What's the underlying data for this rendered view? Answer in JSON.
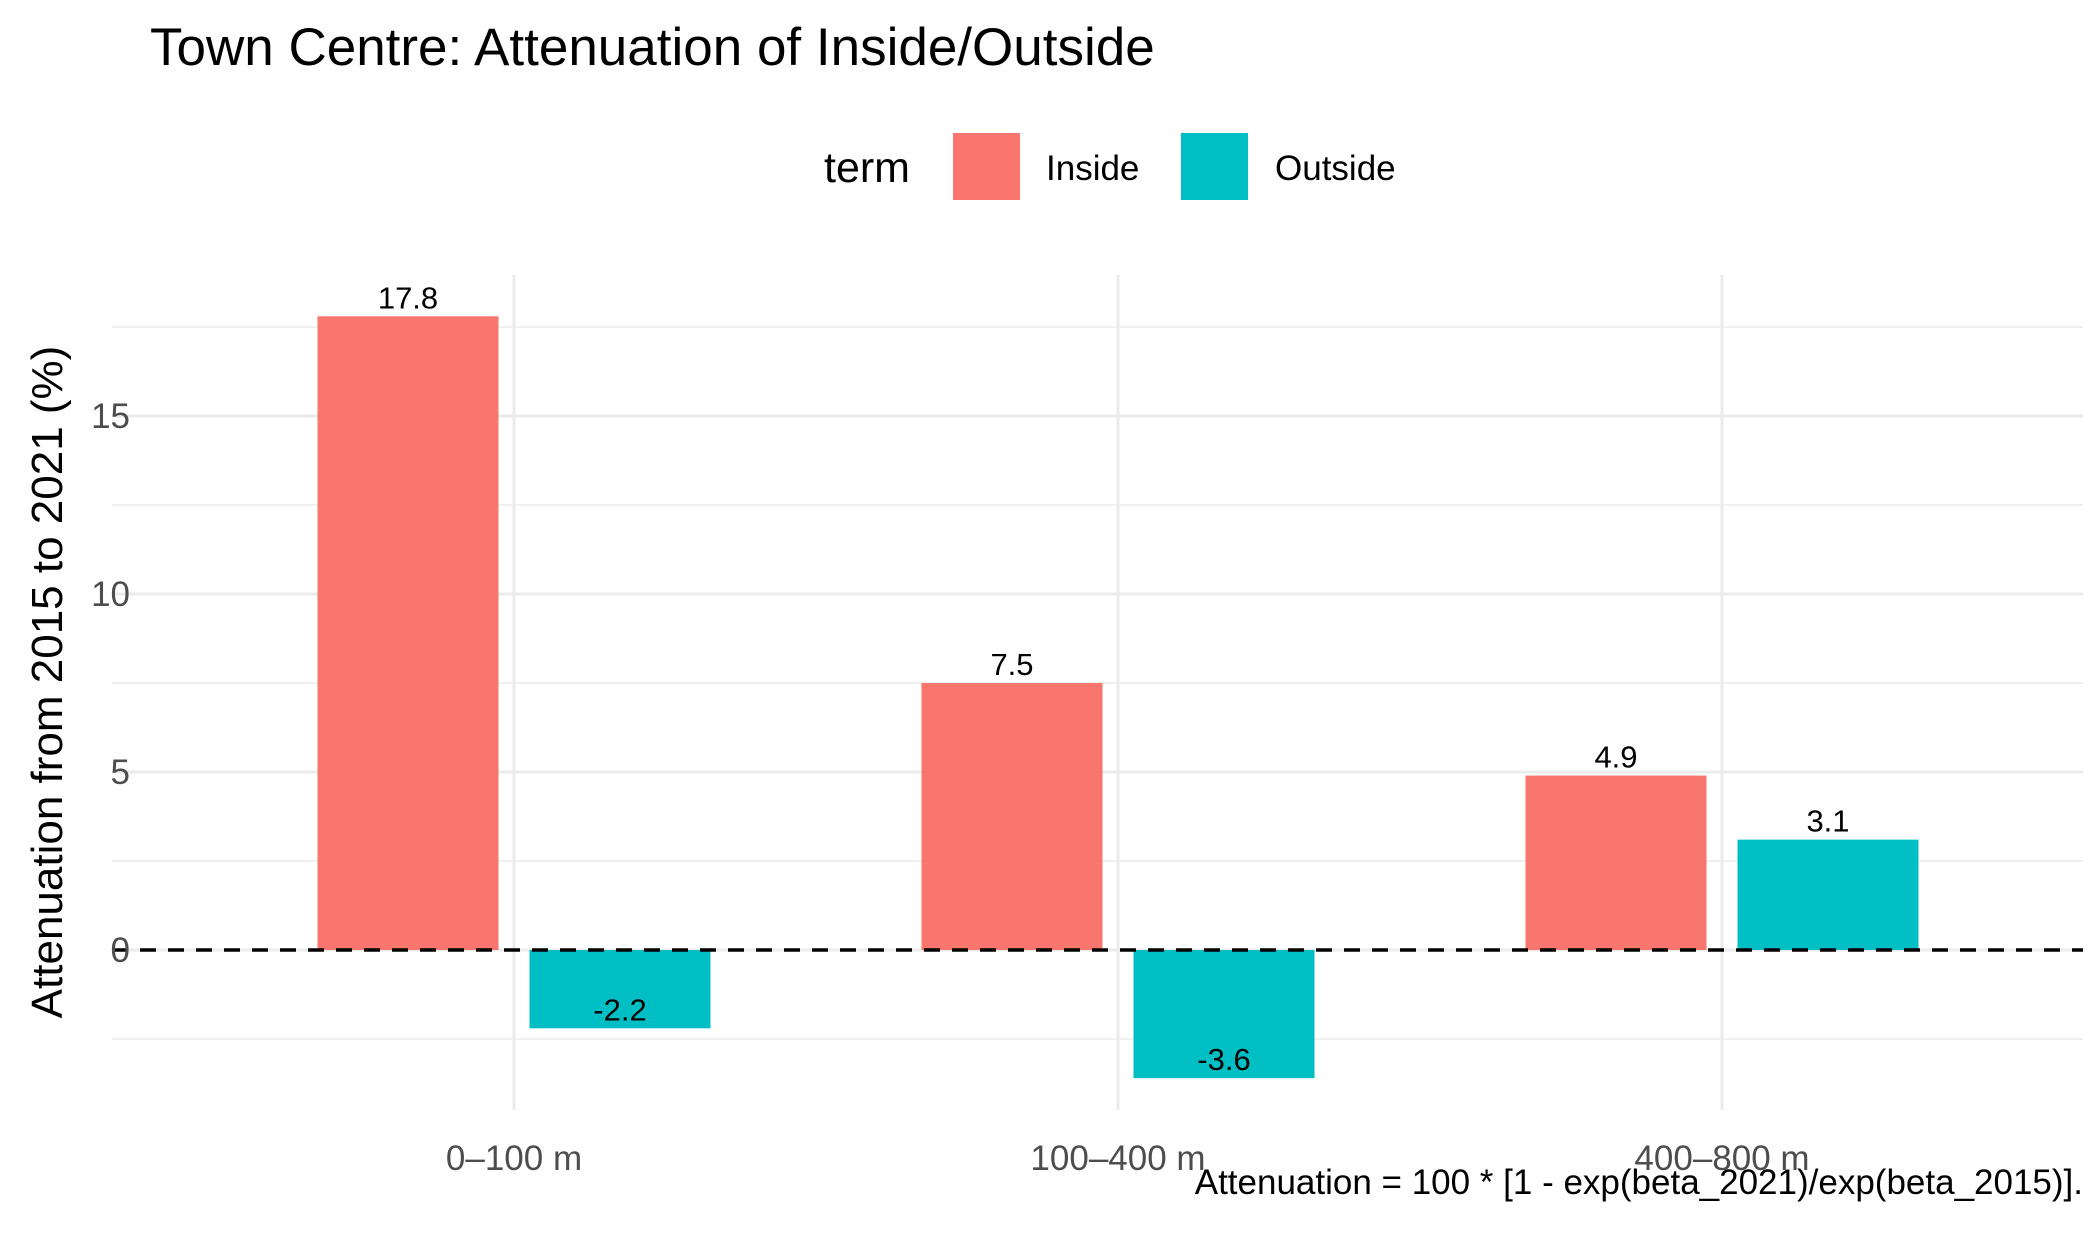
{
  "chart_data": {
    "type": "bar",
    "title": "Town Centre: Attenuation of Inside/Outside",
    "xlabel": "",
    "ylabel": "Attenuation from 2015 to 2021 (%)",
    "caption": "Attenuation = 100 * [1 - exp(beta_2021)/exp(beta_2015)].",
    "legend": {
      "title": "term",
      "position": "top"
    },
    "categories": [
      "0–100 m",
      "100–400 m",
      "400–800 m"
    ],
    "series": [
      {
        "name": "Inside",
        "color": "#F8766D",
        "values": [
          17.8,
          7.5,
          4.9
        ]
      },
      {
        "name": "Outside",
        "color": "#00BFC4",
        "values": [
          -2.2,
          -3.6,
          3.1
        ]
      }
    ],
    "data_labels": [
      [
        "17.8",
        "7.5",
        "4.9"
      ],
      [
        "-2.2",
        "-3.6",
        "3.1"
      ]
    ],
    "yticks": [
      0,
      5,
      10,
      15
    ],
    "ylim": [
      -4.5,
      18.5
    ],
    "grid": true,
    "reference_line": {
      "y": 0,
      "style": "dashed"
    }
  }
}
